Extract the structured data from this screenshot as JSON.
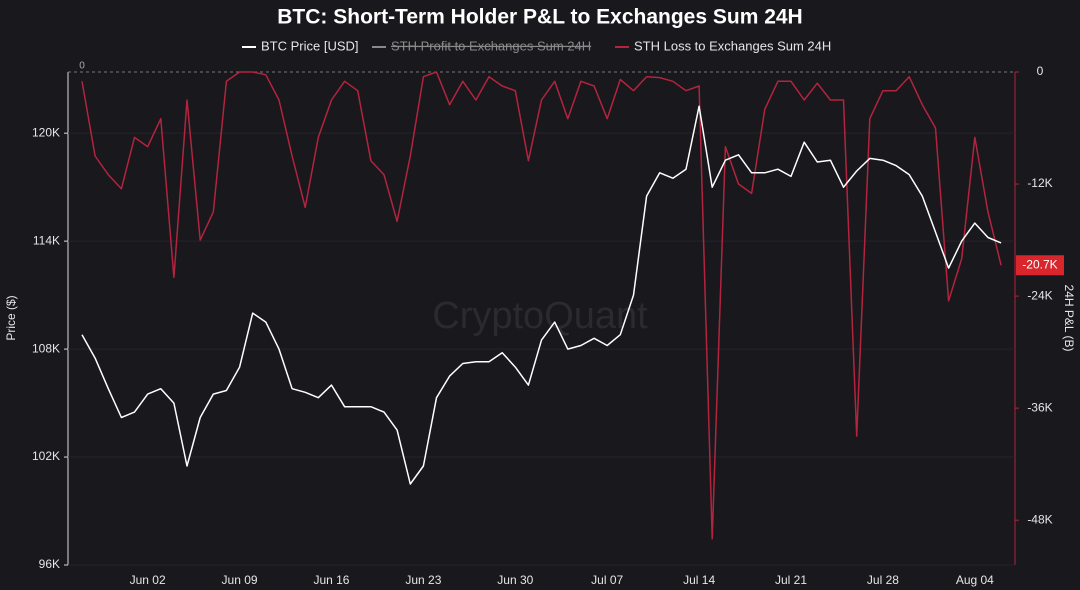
{
  "chart_data": {
    "type": "line",
    "title": "BTC: Short-Term Holder P&L to Exchanges Sum 24H",
    "watermark": "CryptoQuant",
    "ylabel": "Price ($)",
    "y2label": "24H P&L (B)",
    "categories": [
      null,
      null,
      null,
      null,
      null,
      "Jun 02",
      null,
      null,
      null,
      null,
      null,
      null,
      "Jun 09",
      null,
      null,
      null,
      null,
      null,
      null,
      "Jun 16",
      null,
      null,
      null,
      null,
      null,
      null,
      "Jun 23",
      null,
      null,
      null,
      null,
      null,
      null,
      "Jun 30",
      null,
      null,
      null,
      null,
      null,
      null,
      "Jul 07",
      null,
      null,
      null,
      null,
      null,
      null,
      "Jul 14",
      null,
      null,
      null,
      null,
      null,
      null,
      "Jul 21",
      null,
      null,
      null,
      null,
      null,
      null,
      "Jul 28",
      null,
      null,
      null,
      null,
      null,
      null,
      "Aug 04",
      null,
      null
    ],
    "ylim": [
      96000,
      123400
    ],
    "yticks": [
      {
        "value": 96000,
        "label": "96K"
      },
      {
        "value": 102000,
        "label": "102K"
      },
      {
        "value": 108000,
        "label": "108K"
      },
      {
        "value": 114000,
        "label": "114K"
      },
      {
        "value": 120000,
        "label": "120K"
      }
    ],
    "y2lim": [
      -52800,
      0
    ],
    "y2ticks": [
      0,
      {
        "value": -12000,
        "label": "-12K"
      },
      {
        "value": -24000,
        "label": "-24K"
      },
      {
        "value": -36000,
        "label": "-36K"
      },
      {
        "value": -48000,
        "label": "-48K"
      }
    ],
    "series": [
      {
        "name": "BTC Price [USD]",
        "color": "#ffffff",
        "values": [
          108800,
          107500,
          105800,
          104200,
          104500,
          105500,
          105800,
          105000,
          101500,
          104200,
          105500,
          105700,
          107000,
          110000,
          109500,
          108000,
          105800,
          105600,
          105300,
          106000,
          104800,
          104800,
          104800,
          104500,
          103500,
          100500,
          101500,
          105300,
          106500,
          107200,
          107300,
          107300,
          107800,
          107000,
          106000,
          108500,
          109500,
          108000,
          108200,
          108600,
          108200,
          108800,
          111000,
          116500,
          117800,
          117500,
          118000,
          121500,
          117000,
          118500,
          118800,
          117800,
          117800,
          118000,
          117600,
          119500,
          118400,
          118500,
          117000,
          117900,
          118600,
          118500,
          118200,
          117700,
          116500,
          114500,
          112500,
          114000,
          115000,
          114200,
          113900
        ]
      },
      {
        "name": "STH Profit to Exchanges Sum 24H",
        "color": "#8a8a8a",
        "hidden": true
      },
      {
        "name": "STH Loss to Exchanges Sum 24H",
        "color": "#b3243f",
        "axis": "y2",
        "values": [
          -1000,
          -9000,
          -11000,
          -12500,
          -7000,
          -8000,
          -5000,
          -22000,
          -3000,
          -18000,
          -15000,
          -1000,
          0,
          0,
          -300,
          -3000,
          -9000,
          -14500,
          -7000,
          -3000,
          -1000,
          -2000,
          -9500,
          -11000,
          -16000,
          -9000,
          -500,
          0,
          -3500,
          -1000,
          -3000,
          -500,
          -1500,
          -2000,
          -9500,
          -3000,
          -1000,
          -5000,
          -1000,
          -1500,
          -5000,
          -800,
          -2000,
          -500,
          -600,
          -1000,
          -2000,
          -1500,
          -50000,
          -8000,
          -12000,
          -13000,
          -4000,
          -1000,
          -1000,
          -3000,
          -1200,
          -3000,
          -3000,
          -39000,
          -5000,
          -2000,
          -2000,
          -500,
          -3500,
          -6000,
          -24500,
          -20000,
          -7000,
          -15000,
          -20700
        ],
        "value_labels": [
          null,
          null,
          null,
          null,
          null,
          null,
          null,
          null,
          null,
          null,
          null,
          null,
          null,
          null,
          null,
          null,
          null,
          null,
          null,
          null,
          null,
          null,
          null,
          null,
          null,
          null,
          null,
          null,
          null,
          null,
          null,
          null,
          null,
          null,
          null,
          null,
          null,
          null,
          null,
          null,
          null,
          null,
          null,
          null,
          null,
          null,
          null,
          null,
          null,
          null,
          null,
          null,
          null,
          null,
          null,
          null,
          null,
          null,
          null,
          null,
          null,
          null,
          null,
          null,
          null,
          null,
          null,
          null,
          null,
          null,
          "-20.7K"
        ]
      }
    ]
  }
}
